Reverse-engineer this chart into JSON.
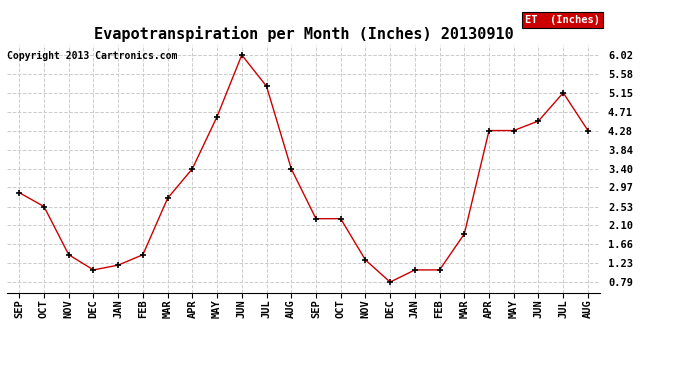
{
  "title": "Evapotranspiration per Month (Inches) 20130910",
  "copyright": "Copyright 2013 Cartronics.com",
  "legend_label": "ET  (Inches)",
  "legend_bg": "#cc0000",
  "line_color": "#cc0000",
  "marker_color": "#000000",
  "x_labels": [
    "SEP",
    "OCT",
    "NOV",
    "DEC",
    "JAN",
    "FEB",
    "MAR",
    "APR",
    "MAY",
    "JUN",
    "JUL",
    "AUG",
    "SEP",
    "OCT",
    "NOV",
    "DEC",
    "JAN",
    "FEB",
    "MAR",
    "APR",
    "MAY",
    "JUN",
    "JUL",
    "AUG"
  ],
  "y_values": [
    2.85,
    2.53,
    1.42,
    1.07,
    1.18,
    1.42,
    2.72,
    3.4,
    4.6,
    6.02,
    5.3,
    3.4,
    2.25,
    2.25,
    1.3,
    0.79,
    1.07,
    1.07,
    1.9,
    4.28,
    4.28,
    4.5,
    5.15,
    4.28
  ],
  "yticks": [
    0.79,
    1.23,
    1.66,
    2.1,
    2.53,
    2.97,
    3.4,
    3.84,
    4.28,
    4.71,
    5.15,
    5.58,
    6.02
  ],
  "background_color": "#ffffff",
  "grid_color": "#cccccc",
  "title_fontsize": 11,
  "tick_fontsize": 7.5,
  "copyright_fontsize": 7,
  "legend_fontsize": 7.5,
  "figsize": [
    6.9,
    3.75
  ],
  "dpi": 100
}
